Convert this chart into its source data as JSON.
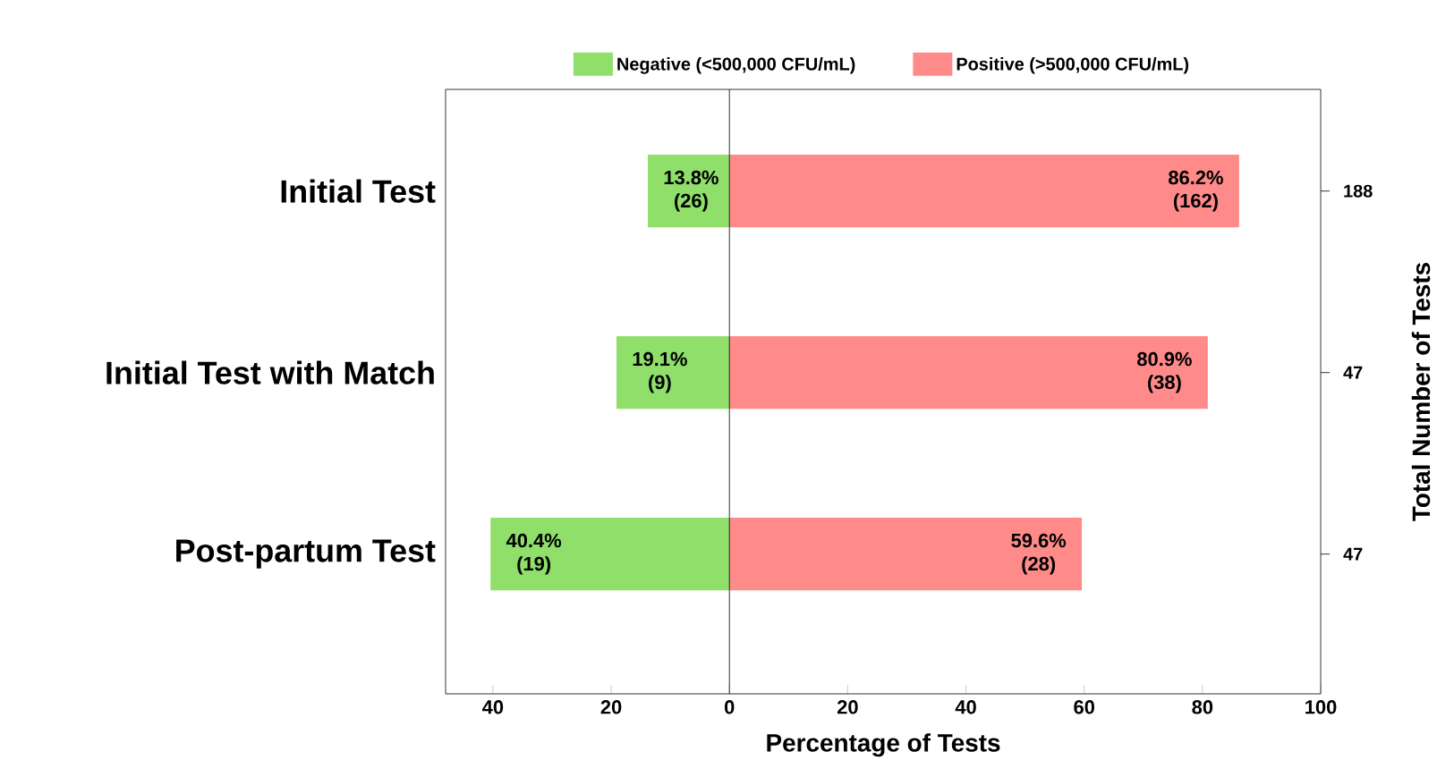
{
  "chart_data": {
    "type": "bar",
    "orientation": "horizontal",
    "stacked": true,
    "categories": [
      "Initial Test",
      "Initial Test with Match",
      "Post-partum Test"
    ],
    "series": [
      {
        "name": "Negative (<500,000 CFU/mL)",
        "color": "#8fdf6a",
        "base": [
          -13.8,
          -19.1,
          -40.4
        ],
        "values": [
          13.8,
          19.1,
          40.4
        ],
        "value_labels": [
          "13.8% (26)",
          "19.1% (9)",
          "40.4% (19)"
        ]
      },
      {
        "name": "Positive (>500,000 CFU/mL)",
        "color": "#ff8a8a",
        "values": [
          86.2,
          80.9,
          59.6
        ],
        "value_labels": [
          "86.2% (162)",
          "80.9% (38)",
          "59.6% (28)"
        ]
      }
    ],
    "annotations": [
      "188",
      "47",
      "47"
    ],
    "xlabel": "Percentage of Tests",
    "y2label": "Total Number of Tests",
    "xlim": [
      -48,
      100
    ],
    "xticks": [
      {
        "value": -40,
        "label": "40"
      },
      {
        "value": -20,
        "label": "20"
      },
      0,
      20,
      40,
      60,
      80,
      100
    ],
    "ref_lines": [
      {
        "axis": "x",
        "value": 0
      }
    ],
    "legend": "top",
    "grid": false
  }
}
